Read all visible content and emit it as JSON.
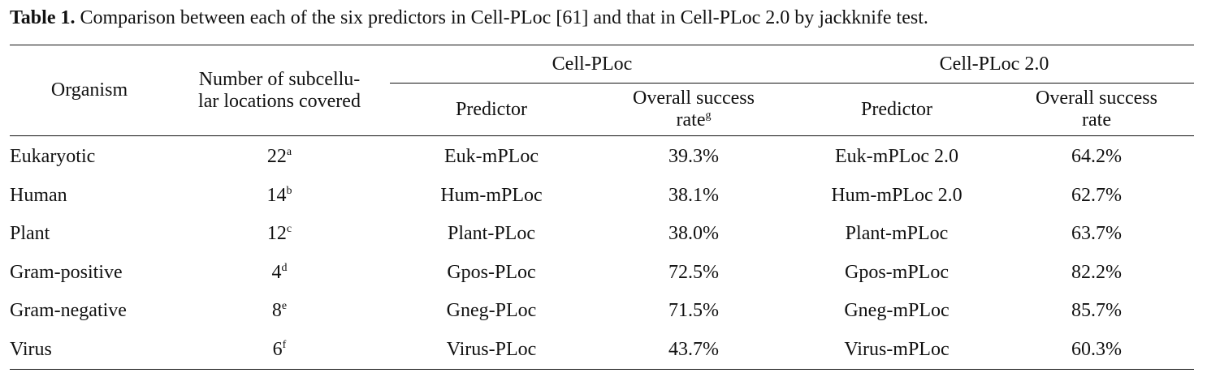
{
  "caption": {
    "label": "Table 1.",
    "text": " Comparison between each of the six predictors in Cell-PLoc [61] and that in Cell-PLoc 2.0 by jackknife test."
  },
  "header": {
    "organism": "Organism",
    "locations": [
      "Number of subcellu-",
      "lar locations covered"
    ],
    "group1": "Cell-PLoc",
    "group2": "Cell-PLoc 2.0",
    "predictor": "Predictor",
    "rate1": [
      "Overall success",
      "rate",
      "g"
    ],
    "rate2": [
      "Overall success",
      "rate"
    ]
  },
  "rows": [
    {
      "organism": "Eukaryotic",
      "locations": "22",
      "note": "a",
      "pred1": "Euk-mPLoc",
      "rate1": "39.3%",
      "pred2": "Euk-mPLoc 2.0",
      "rate2": "64.2%"
    },
    {
      "organism": "Human",
      "locations": "14",
      "note": "b",
      "pred1": "Hum-mPLoc",
      "rate1": "38.1%",
      "pred2": "Hum-mPLoc 2.0",
      "rate2": "62.7%"
    },
    {
      "organism": "Plant",
      "locations": "12",
      "note": "c",
      "pred1": "Plant-PLoc",
      "rate1": "38.0%",
      "pred2": "Plant-mPLoc",
      "rate2": "63.7%"
    },
    {
      "organism": "Gram-positive",
      "locations": "4",
      "note": "d",
      "pred1": "Gpos-PLoc",
      "rate1": "72.5%",
      "pred2": "Gpos-mPLoc",
      "rate2": "82.2%"
    },
    {
      "organism": "Gram-negative",
      "locations": "8",
      "note": "e",
      "pred1": "Gneg-PLoc",
      "rate1": "71.5%",
      "pred2": "Gneg-mPLoc",
      "rate2": "85.7%"
    },
    {
      "organism": "Virus",
      "locations": "6",
      "note": "f",
      "pred1": "Virus-PLoc",
      "rate1": "43.7%",
      "pred2": "Virus-mPLoc",
      "rate2": "60.3%"
    }
  ]
}
